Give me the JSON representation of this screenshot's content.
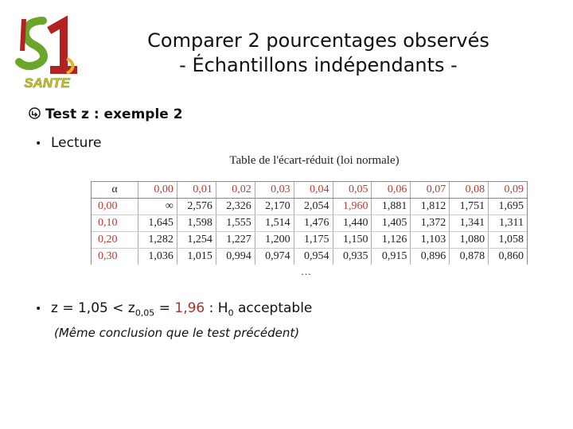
{
  "logo": {
    "text": "SANTE",
    "colors": {
      "green": "#6aa62a",
      "red": "#b22222",
      "gold": "#e3b32a"
    }
  },
  "title": {
    "line1": "Comparer 2 pourcentages observés",
    "line2": "- Échantillons indépendants -"
  },
  "section": {
    "icon": "curved-arrow-icon",
    "label": "Test z : exemple 2"
  },
  "bullet1": "Lecture",
  "table": {
    "title": "Table de l'écart-réduit (loi normale)",
    "corner": "α",
    "columns": [
      "0,00",
      "0,01",
      "0,02",
      "0,03",
      "0,04",
      "0,05",
      "0,06",
      "0,07",
      "0,08",
      "0,09"
    ],
    "rows": [
      {
        "alpha": "0,00",
        "values": [
          "∞",
          "2,576",
          "2,326",
          "2,170",
          "2,054",
          "1,960",
          "1,881",
          "1,812",
          "1,751",
          "1,695"
        ]
      },
      {
        "alpha": "0,10",
        "values": [
          "1,645",
          "1,598",
          "1,555",
          "1,514",
          "1,476",
          "1,440",
          "1,405",
          "1,372",
          "1,341",
          "1,311"
        ]
      },
      {
        "alpha": "0,20",
        "values": [
          "1,282",
          "1,254",
          "1,227",
          "1,200",
          "1,175",
          "1,150",
          "1,126",
          "1,103",
          "1,080",
          "1,058"
        ]
      },
      {
        "alpha": "0,30",
        "values": [
          "1,036",
          "1,015",
          "0,994",
          "0,974",
          "0,954",
          "0,935",
          "0,915",
          "0,896",
          "0,878",
          "0,860"
        ]
      }
    ],
    "highlight": "1,960",
    "ellipsis": "…"
  },
  "conclusion": {
    "prefix": "z = 1,05 < z",
    "sub": "0,05",
    "eq": " = ",
    "value": "1,96",
    "mid": " : H",
    "h_sub": "0",
    "suffix": " acceptable"
  },
  "note": "(Même conclusion que le test précédent)"
}
